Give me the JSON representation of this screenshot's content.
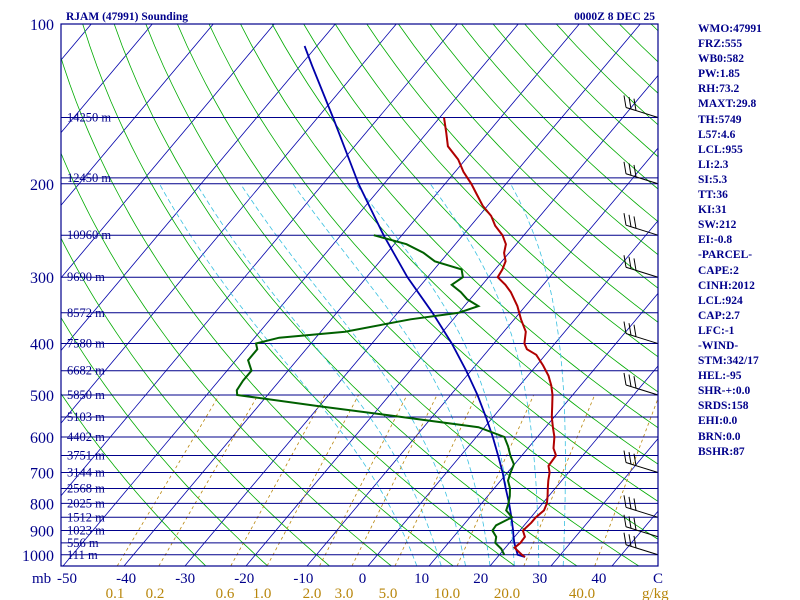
{
  "chart_data": {
    "type": "skew-t sounding",
    "title": "RJAM (47991) Sounding",
    "valid_time": "0000Z  8 DEC 25",
    "pressure_axis_unit": "mb",
    "pressure_levels": [
      100,
      200,
      300,
      400,
      500,
      600,
      700,
      800,
      900,
      1000
    ],
    "temperature_ticks": [
      "-50",
      "-40",
      "-30",
      "-20",
      "-10",
      "0",
      "10",
      "20",
      "30",
      "40",
      "C"
    ],
    "mixing_ratio_ticks": [
      "0.1",
      "0.2",
      "0.6",
      "1.0",
      "2.0",
      "3.0",
      "5.0",
      "10.0",
      "20.0",
      "40.0"
    ],
    "mixing_ratio_unit": "g/kg",
    "height_labels": [
      {
        "p": 150,
        "label": "14250 m"
      },
      {
        "p": 195,
        "label": "12450 m"
      },
      {
        "p": 250,
        "label": "10960 m"
      },
      {
        "p": 300,
        "label": "9690 m"
      },
      {
        "p": 350,
        "label": "8572 m"
      },
      {
        "p": 400,
        "label": "7580 m"
      },
      {
        "p": 450,
        "label": "6682 m"
      },
      {
        "p": 500,
        "label": "5850 m"
      },
      {
        "p": 550,
        "label": "5103 m"
      },
      {
        "p": 600,
        "label": "4402 m"
      },
      {
        "p": 650,
        "label": "3751 m"
      },
      {
        "p": 700,
        "label": "3144 m"
      },
      {
        "p": 750,
        "label": "2568 m"
      },
      {
        "p": 800,
        "label": "2025 m"
      },
      {
        "p": 850,
        "label": "1512 m"
      },
      {
        "p": 900,
        "label": "1023 m"
      },
      {
        "p": 950,
        "label": "556 m"
      },
      {
        "p": 1000,
        "label": "111 m"
      }
    ],
    "temperature_profile": [
      [
        1010,
        24.5
      ],
      [
        1000,
        23.7
      ],
      [
        970,
        21.5
      ],
      [
        950,
        21.8
      ],
      [
        925,
        21.7
      ],
      [
        900,
        20.5
      ],
      [
        870,
        20.8
      ],
      [
        850,
        20.8
      ],
      [
        825,
        21.2
      ],
      [
        800,
        20.7
      ],
      [
        775,
        19.8
      ],
      [
        750,
        18.8
      ],
      [
        725,
        17.8
      ],
      [
        700,
        16.9
      ],
      [
        680,
        15.8
      ],
      [
        650,
        15.6
      ],
      [
        630,
        14.2
      ],
      [
        600,
        12.8
      ],
      [
        575,
        11.2
      ],
      [
        550,
        9.6
      ],
      [
        525,
        8.2
      ],
      [
        500,
        6.7
      ],
      [
        480,
        5.2
      ],
      [
        460,
        3.4
      ],
      [
        440,
        1.1
      ],
      [
        420,
        -1.5
      ],
      [
        410,
        -3.8
      ],
      [
        400,
        -5.0
      ],
      [
        380,
        -6.4
      ],
      [
        360,
        -8.9
      ],
      [
        340,
        -11.3
      ],
      [
        320,
        -14.3
      ],
      [
        310,
        -16.2
      ],
      [
        300,
        -18.5
      ],
      [
        290,
        -18.8
      ],
      [
        280,
        -19.4
      ],
      [
        270,
        -20.8
      ],
      [
        260,
        -21.7
      ],
      [
        250,
        -23.5
      ],
      [
        240,
        -26.0
      ],
      [
        230,
        -28.0
      ],
      [
        220,
        -30.8
      ],
      [
        210,
        -33.2
      ],
      [
        200,
        -35.7
      ],
      [
        190,
        -38.6
      ],
      [
        180,
        -41.2
      ],
      [
        170,
        -44.7
      ],
      [
        160,
        -46.9
      ],
      [
        150,
        -49.3
      ]
    ],
    "dewpoint_profile": [
      [
        1000,
        20.8
      ],
      [
        975,
        19.5
      ],
      [
        950,
        17.7
      ],
      [
        925,
        17.0
      ],
      [
        900,
        15.5
      ],
      [
        880,
        15.4
      ],
      [
        850,
        16.9
      ],
      [
        825,
        15.0
      ],
      [
        800,
        14.4
      ],
      [
        775,
        13.6
      ],
      [
        750,
        12.6
      ],
      [
        725,
        11.2
      ],
      [
        700,
        10.5
      ],
      [
        675,
        9.9
      ],
      [
        650,
        8.1
      ],
      [
        625,
        6.5
      ],
      [
        600,
        4.6
      ],
      [
        575,
        -1.0
      ],
      [
        550,
        -15.0
      ],
      [
        525,
        -30.0
      ],
      [
        500,
        -45.0
      ],
      [
        490,
        -45.7
      ],
      [
        470,
        -46.0
      ],
      [
        450,
        -46.0
      ],
      [
        430,
        -48.0
      ],
      [
        410,
        -48.0
      ],
      [
        400,
        -49.0
      ],
      [
        390,
        -46.0
      ],
      [
        380,
        -36.0
      ],
      [
        360,
        -27.0
      ],
      [
        350,
        -20.0
      ],
      [
        340,
        -17.7
      ],
      [
        330,
        -20.5
      ],
      [
        320,
        -22.5
      ],
      [
        310,
        -25.0
      ],
      [
        300,
        -24.2
      ],
      [
        290,
        -25.5
      ],
      [
        280,
        -31.0
      ],
      [
        270,
        -34.0
      ],
      [
        260,
        -38.0
      ],
      [
        250,
        -44.6
      ]
    ],
    "parcel_profile": [
      [
        1010,
        24.5
      ],
      [
        1000,
        23.0
      ],
      [
        950,
        20.8
      ],
      [
        924,
        19.8
      ],
      [
        900,
        18.9
      ],
      [
        850,
        16.8
      ],
      [
        800,
        14.5
      ],
      [
        750,
        11.9
      ],
      [
        700,
        9.2
      ],
      [
        650,
        6.1
      ],
      [
        600,
        2.7
      ],
      [
        550,
        -1.2
      ],
      [
        500,
        -5.6
      ],
      [
        450,
        -10.8
      ],
      [
        400,
        -16.9
      ],
      [
        350,
        -24.3
      ],
      [
        300,
        -33.3
      ],
      [
        250,
        -43.0
      ],
      [
        200,
        -54.2
      ],
      [
        150,
        -67.5
      ],
      [
        120,
        -78.0
      ],
      [
        110,
        -82.0
      ]
    ],
    "wind_barb_levels": [
      150,
      200,
      250,
      300,
      400,
      500,
      700,
      850,
      925,
      1000
    ],
    "stats": [
      "WMO:47991",
      "FRZ:555",
      "WB0:582",
      "PW:1.85",
      "RH:73.2",
      "MAXT:29.8",
      "TH:5749",
      "L57:4.6",
      "LCL:955",
      "LI:2.3",
      "SI:5.3",
      "TT:36",
      "KI:31",
      "SW:212",
      "EI:-0.8",
      "-PARCEL-",
      "CAPE:2",
      "CINH:2012",
      "LCL:924",
      "CAP:2.7",
      "LFC:-1",
      "-WIND-",
      "STM:342/17",
      "HEL:-95",
      "SHR-+:0.0",
      "SRDS:158",
      "EHI:0.0",
      "BRN:0.0",
      "BSHR:87"
    ]
  },
  "colors": {
    "frame": "#00008b",
    "isobar": "#00008b",
    "isotherm": "#0000aa",
    "dry_adiabat": "#00aa00",
    "moist_adiabat": "#39c0e0",
    "mixing_ratio": "#b8860b",
    "temperature": "#b00000",
    "dewpoint": "#006000",
    "parcel": "#0000aa",
    "barb": "#000000",
    "text": "#00008b",
    "mixing_label": "#b8860b"
  }
}
